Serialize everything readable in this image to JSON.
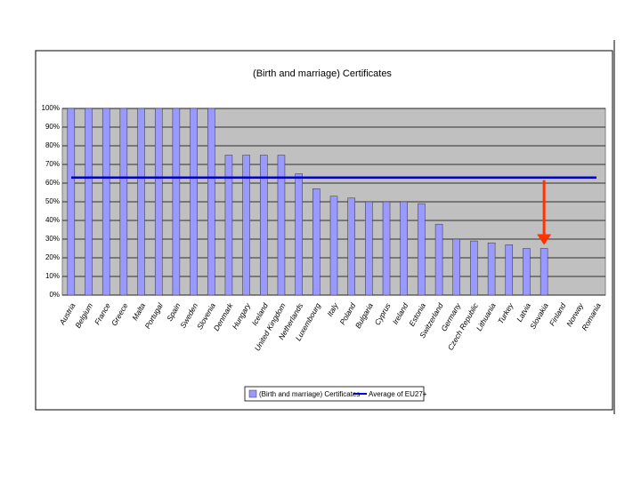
{
  "chart_data": {
    "type": "bar",
    "title": "(Birth and marriage) Certificates",
    "categories": [
      "Austria",
      "Belgium",
      "France",
      "Greece",
      "Malta",
      "Portugal",
      "Spain",
      "Sweden",
      "Slovenia",
      "Denmark",
      "Hungary",
      "Iceland",
      "United Kingdom",
      "Netherlands",
      "Luxembourg",
      "Italy",
      "Poland",
      "Bulgaria",
      "Cyprus",
      "Ireland",
      "Estonia",
      "Switzerland",
      "Germany",
      "Czech Republic",
      "Lithuania",
      "Turkey",
      "Latvia",
      "Slovakia",
      "Finland",
      "Norway",
      "Romania"
    ],
    "series": [
      {
        "name": "(Birth and marriage) Certificates",
        "color": "#9999ff",
        "values": [
          100,
          100,
          100,
          100,
          100,
          100,
          100,
          100,
          100,
          75,
          75,
          75,
          75,
          65,
          57,
          53,
          52,
          50,
          50,
          50,
          49,
          38,
          30,
          29,
          28,
          27,
          25,
          25,
          0,
          0,
          0
        ]
      }
    ],
    "reference_line": {
      "name": "Average of EU27+",
      "value": 63,
      "color": "#0000cc"
    },
    "ylim": [
      0,
      100
    ],
    "yticks": [
      {
        "value": 0,
        "label": "0%"
      },
      {
        "value": 10,
        "label": "10%"
      },
      {
        "value": 20,
        "label": "20%"
      },
      {
        "value": 30,
        "label": "30%"
      },
      {
        "value": 40,
        "label": "40%"
      },
      {
        "value": 50,
        "label": "50%"
      },
      {
        "value": 60,
        "label": "60%"
      },
      {
        "value": 70,
        "label": "70%"
      },
      {
        "value": 80,
        "label": "80%"
      },
      {
        "value": 90,
        "label": "90%"
      },
      {
        "value": 100,
        "label": "100%"
      }
    ],
    "grid": true,
    "legend": "bottom"
  }
}
